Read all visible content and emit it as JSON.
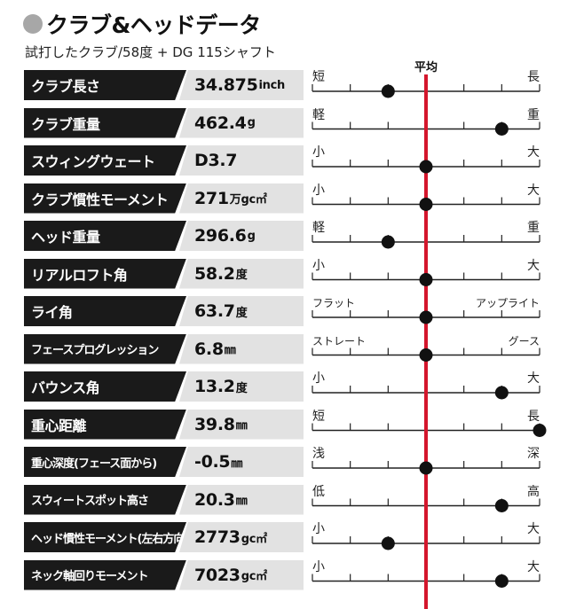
{
  "header": {
    "title": "クラブ&ヘッドデータ",
    "subtitle": "試打したクラブ/58度 + DG 115シャフト",
    "average_label": "平均"
  },
  "colors": {
    "average_line": "#d4162c",
    "label_bg": "#1a1a1a",
    "value_bg": "#e2e2e2",
    "dot": "#111111"
  },
  "rows": [
    {
      "label": "クラブ長さ",
      "value": "34.875",
      "unit": "inch",
      "left": "短",
      "right": "長",
      "position": -2
    },
    {
      "label": "クラブ重量",
      "value": "462.4",
      "unit": "g",
      "left": "軽",
      "right": "重",
      "position": 4
    },
    {
      "label": "スウィングウェート",
      "value": "D3.7",
      "unit": "",
      "left": "小",
      "right": "大",
      "position": 0
    },
    {
      "label": "クラブ慣性モーメント",
      "value": "271",
      "unit": "万gc㎡",
      "left": "小",
      "right": "大",
      "position": 0
    },
    {
      "label": "ヘッド重量",
      "value": "296.6",
      "unit": "g",
      "left": "軽",
      "right": "重",
      "position": -2
    },
    {
      "label": "リアルロフト角",
      "value": "58.2",
      "unit": "度",
      "left": "小",
      "right": "大",
      "position": 0
    },
    {
      "label": "ライ角",
      "value": "63.7",
      "unit": "度",
      "left": "フラット",
      "right": "アップライト",
      "position": 0
    },
    {
      "label": "フェースプログレッション",
      "value": "6.8",
      "unit": "㎜",
      "left": "ストレート",
      "right": "グース",
      "position": 0
    },
    {
      "label": "バウンス角",
      "value": "13.2",
      "unit": "度",
      "left": "小",
      "right": "大",
      "position": 4
    },
    {
      "label": "重心距離",
      "value": "39.8",
      "unit": "㎜",
      "left": "短",
      "right": "長",
      "position": 6
    },
    {
      "label": "重心深度(フェース面から)",
      "value": "-0.5",
      "unit": "㎜",
      "left": "浅",
      "right": "深",
      "position": 0
    },
    {
      "label": "スウィートスポット高さ",
      "value": "20.3",
      "unit": "㎜",
      "left": "低",
      "right": "高",
      "position": 4
    },
    {
      "label": "ヘッド慣性モーメント(左右方向)",
      "value": "2773",
      "unit": "gc㎡",
      "left": "小",
      "right": "大",
      "position": -2
    },
    {
      "label": "ネック軸回りモーメント",
      "value": "7023",
      "unit": "gc㎡",
      "left": "小",
      "right": "大",
      "position": 4
    }
  ]
}
